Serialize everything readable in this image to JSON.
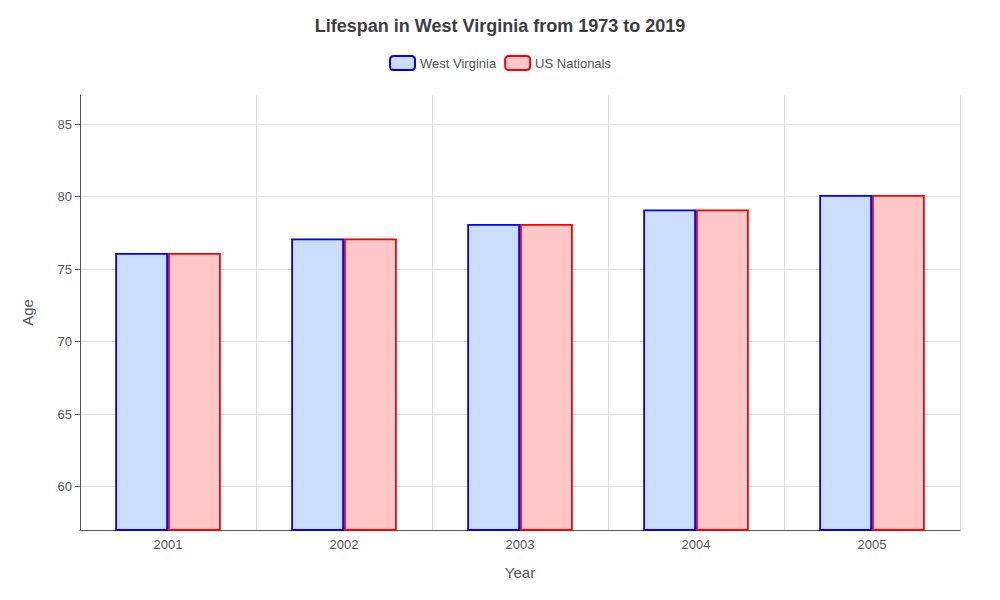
{
  "chart_data": {
    "type": "bar",
    "title": "Lifespan in West Virginia from 1973 to 2019",
    "x_label": "Year",
    "y_label": "Age",
    "categories": [
      "2001",
      "2002",
      "2003",
      "2004",
      "2005"
    ],
    "series": [
      {
        "name": "West Virginia",
        "color": "#ccdeff",
        "values": [
          76.1,
          77.1,
          78.1,
          79.1,
          80.1
        ]
      },
      {
        "name": "US Nationals",
        "color": "#ffc8c8",
        "values": [
          76.1,
          77.1,
          78.1,
          79.1,
          80.1
        ]
      }
    ],
    "ylim": [
      57,
      87
    ],
    "yticks": [
      60,
      65,
      70,
      75,
      80,
      85
    ],
    "grid": true,
    "legend": "top"
  }
}
